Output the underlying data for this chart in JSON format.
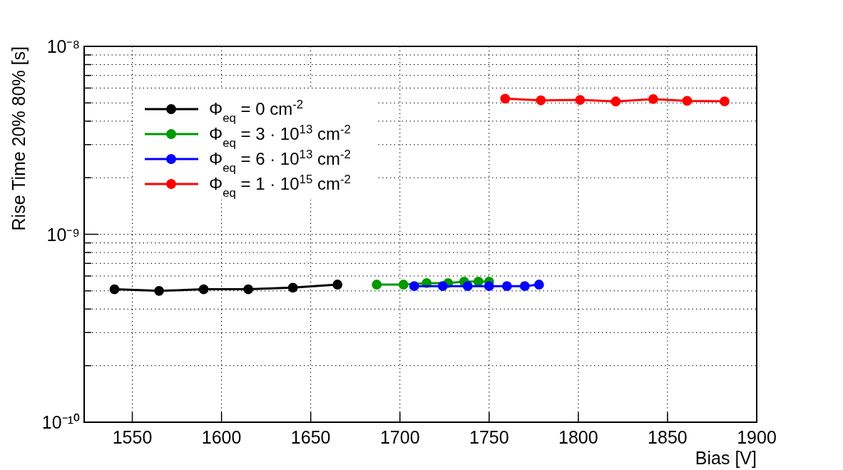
{
  "chart_data": {
    "type": "line",
    "xlabel": "Bias [V]",
    "ylabel": "Rise Time 20% 80% [s]",
    "log": "y",
    "grid": true,
    "legend": "top left",
    "marker": "circle",
    "line_style": "solid",
    "xlim": [
      1523,
      1900
    ],
    "xticks": [
      1550,
      1600,
      1650,
      1700,
      1750,
      1800,
      1850,
      1900
    ],
    "ylim": [
      1e-10,
      1e-08
    ],
    "yticks": [
      {
        "value": 1e-10,
        "label": "10⁻¹⁰"
      },
      {
        "value": 2e-10,
        "label": null
      },
      {
        "value": 3e-10,
        "label": null
      },
      {
        "value": 4e-10,
        "label": null
      },
      {
        "value": 5e-10,
        "label": null
      },
      {
        "value": 6e-10,
        "label": null
      },
      {
        "value": 7e-10,
        "label": null
      },
      {
        "value": 8e-10,
        "label": null
      },
      {
        "value": 9e-10,
        "label": null
      },
      {
        "value": 1e-09,
        "label": "10⁻⁹"
      },
      {
        "value": 2e-09,
        "label": null
      },
      {
        "value": 3e-09,
        "label": null
      },
      {
        "value": 4e-09,
        "label": null
      },
      {
        "value": 5e-09,
        "label": null
      },
      {
        "value": 6e-09,
        "label": null
      },
      {
        "value": 7e-09,
        "label": null
      },
      {
        "value": 8e-09,
        "label": null
      },
      {
        "value": 9e-09,
        "label": null
      },
      {
        "value": 1e-08,
        "label": "10⁻⁸"
      }
    ],
    "series": [
      {
        "name": "Φ$_{eq}$ = 0 cm$^{-2}$",
        "color": "#000000",
        "x": [
          1540,
          1565,
          1590,
          1615,
          1640,
          1665
        ],
        "values": [
          5.1e-10,
          5e-10,
          5.1e-10,
          5.1e-10,
          5.2e-10,
          5.4e-10
        ]
      },
      {
        "name": "Φ$_{eq}$ = 3 · 10$^{13}$ cm$^{-2}$",
        "color": "#009900",
        "x": [
          1687,
          1702,
          1715,
          1727,
          1736,
          1744,
          1750
        ],
        "values": [
          5.4e-10,
          5.4e-10,
          5.5e-10,
          5.5e-10,
          5.6e-10,
          5.6e-10,
          5.6e-10
        ]
      },
      {
        "name": "Φ$_{eq}$ = 6 · 10$^{13}$ cm$^{-2}$",
        "color": "#0000ff",
        "x": [
          1708,
          1724,
          1738,
          1750,
          1760,
          1770,
          1778
        ],
        "values": [
          5.3e-10,
          5.3e-10,
          5.3e-10,
          5.3e-10,
          5.3e-10,
          5.3e-10,
          5.4e-10
        ]
      },
      {
        "name": "Φ$_{eq}$ = 1 · 10$^{15}$ cm$^{-2}$",
        "color": "#ff0000",
        "x": [
          1759,
          1779,
          1801,
          1821,
          1842,
          1861,
          1882
        ],
        "values": [
          5.27e-09,
          5.16e-09,
          5.19e-09,
          5.09e-09,
          5.24e-09,
          5.13e-09,
          5.1e-09
        ]
      }
    ]
  }
}
